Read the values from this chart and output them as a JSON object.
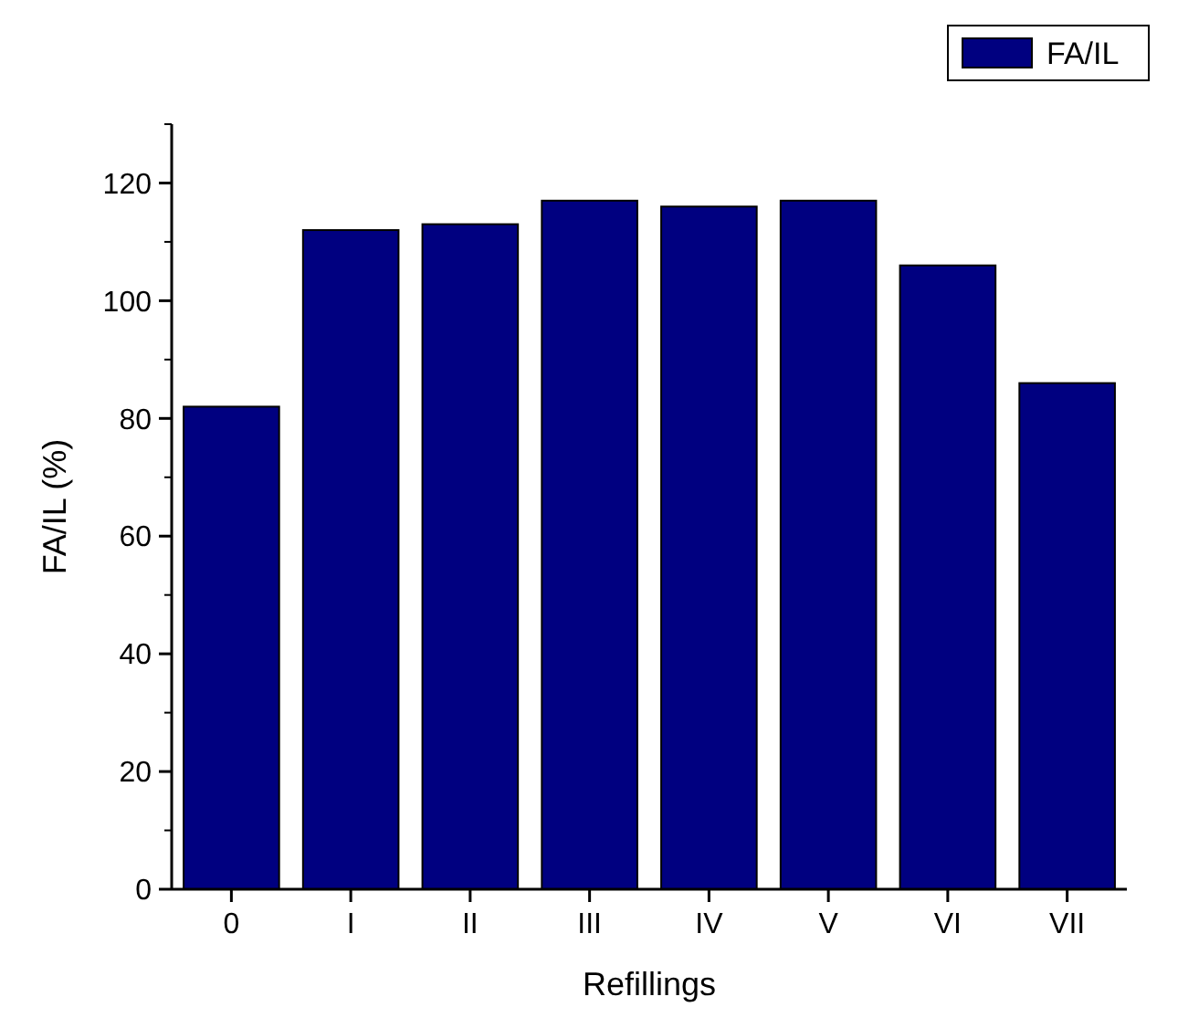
{
  "chart_data": {
    "type": "bar",
    "xlabel": "Refillings",
    "ylabel": "FA/IL (%)",
    "categories": [
      "0",
      "I",
      "II",
      "III",
      "IV",
      "V",
      "VI",
      "VII"
    ],
    "series": [
      {
        "name": "FA/IL",
        "color": "#000080",
        "values": [
          82,
          112,
          113,
          117,
          116,
          117,
          106,
          86
        ]
      }
    ],
    "ylim": [
      0,
      130
    ],
    "yticks": [
      0,
      20,
      40,
      60,
      80,
      100,
      120
    ],
    "grid": false,
    "legend": "top right"
  }
}
